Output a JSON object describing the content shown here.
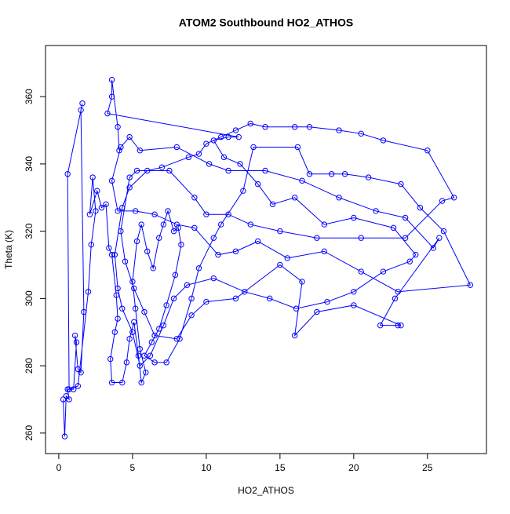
{
  "chart_data": {
    "type": "line",
    "title": "ATOM2 Southbound HO2_ATHOS",
    "x_label": "HO2_ATHOS",
    "y_label": "Theta (K)",
    "color": "#0000ff",
    "markers": true,
    "x": [
      0.3,
      0.4,
      0.5,
      0.7,
      0.6,
      1.0,
      1.2,
      1.1,
      1.3,
      1.5,
      1.7,
      1.5,
      1.6,
      0.6,
      0.7,
      1.3,
      2.0,
      2.2,
      2.5,
      2.3,
      2.1,
      2.6,
      2.9,
      3.2,
      3.4,
      3.6,
      3.9,
      4.0,
      3.8,
      3.5,
      3.6,
      4.3,
      4.6,
      4.8,
      5.1,
      5.4,
      5.6,
      5.9,
      5.5,
      5.2,
      5.0,
      5.3,
      5.6,
      6.0,
      6.4,
      6.8,
      7.1,
      7.4,
      7.8,
      8.1,
      8.3,
      7.9,
      7.3,
      6.8,
      6.3,
      5.8,
      6.5,
      7.3,
      8.2,
      9.0,
      9.5,
      10.5,
      11.0,
      12.5,
      13.2,
      16.2,
      17.0,
      18.5,
      19.4,
      21.0,
      23.2,
      24.5,
      26.1,
      27.9,
      23.0,
      20.5,
      18.0,
      15.5,
      13.5,
      12.0,
      10.8,
      9.2,
      8.0,
      6.5,
      5.2,
      4.0,
      3.6,
      4.2,
      4.8,
      5.5,
      8.0,
      10.2,
      11.5,
      14.0,
      16.5,
      19.0,
      21.5,
      23.5,
      25.4,
      25.8,
      22.8,
      21.8,
      23.0,
      23.2,
      20.0,
      17.5,
      16.0,
      16.5,
      15.0,
      12.0,
      10.0,
      9.0,
      8.0,
      6.5,
      5.8,
      5.1,
      4.5,
      4.2,
      4.8,
      5.3,
      7.5,
      9.2,
      10.0,
      11.5,
      13.0,
      15.0,
      17.5,
      20.5,
      23.5,
      26.0,
      26.8,
      25.0,
      22.0,
      20.5,
      19.0,
      17.0,
      16.0,
      14.0,
      13.0,
      12.0,
      11.0,
      10.0,
      9.5,
      8.8,
      7.0,
      6.0,
      4.8,
      4.3,
      3.8,
      4.0,
      4.3,
      5.0,
      5.5,
      6.2,
      7.1,
      7.8,
      8.7,
      10.5,
      12.6,
      14.3,
      16.1,
      18.2,
      20.0,
      22.0,
      23.8,
      24.2,
      22.7,
      20.0,
      18.0,
      16.0,
      14.5,
      13.5,
      12.3,
      11.2,
      10.5,
      11.5,
      12.2,
      3.3,
      3.6,
      3.6,
      4.0,
      4.1
    ],
    "values": [
      270,
      259,
      271,
      270,
      273,
      273,
      287,
      289,
      279,
      278,
      296,
      356,
      358,
      337,
      273,
      274,
      302,
      316,
      326,
      336,
      325,
      332,
      327,
      328,
      315,
      313,
      301,
      294,
      290,
      282,
      275,
      275,
      281,
      288,
      293,
      283,
      275,
      278,
      285,
      297,
      305,
      317,
      322,
      314,
      309,
      318,
      322,
      326,
      320,
      321,
      316,
      307,
      298,
      291,
      287,
      283,
      281,
      281,
      288,
      300,
      309,
      318,
      322,
      332,
      345,
      345,
      337,
      337,
      337,
      336,
      334,
      327,
      320,
      304,
      302,
      308,
      314,
      312,
      317,
      314,
      313,
      321,
      322,
      325,
      326,
      326,
      335,
      345,
      348,
      344,
      345,
      340,
      338,
      338,
      335,
      330,
      326,
      324,
      315,
      318,
      300,
      292,
      292,
      292,
      298,
      296,
      289,
      305,
      310,
      300,
      299,
      295,
      288,
      289,
      296,
      303,
      311,
      320,
      336,
      338,
      338,
      330,
      325,
      325,
      322,
      320,
      318,
      318,
      318,
      329,
      330,
      344,
      347,
      349,
      350,
      351,
      351,
      351,
      352,
      350,
      348,
      346,
      343,
      342,
      339,
      338,
      333,
      327,
      313,
      303,
      297,
      290,
      280,
      283,
      292,
      300,
      304,
      306,
      302,
      300,
      297,
      299,
      302,
      308,
      311,
      313,
      321,
      324,
      322,
      330,
      328,
      334,
      340,
      342,
      347,
      348,
      348,
      355,
      360,
      365,
      351,
      344
    ],
    "xlim": [
      -0.9,
      29.0
    ],
    "ylim": [
      253.9,
      375.2
    ],
    "xticks": [
      0,
      5,
      10,
      15,
      20,
      25
    ],
    "yticks": [
      260,
      280,
      300,
      320,
      340,
      360
    ]
  }
}
